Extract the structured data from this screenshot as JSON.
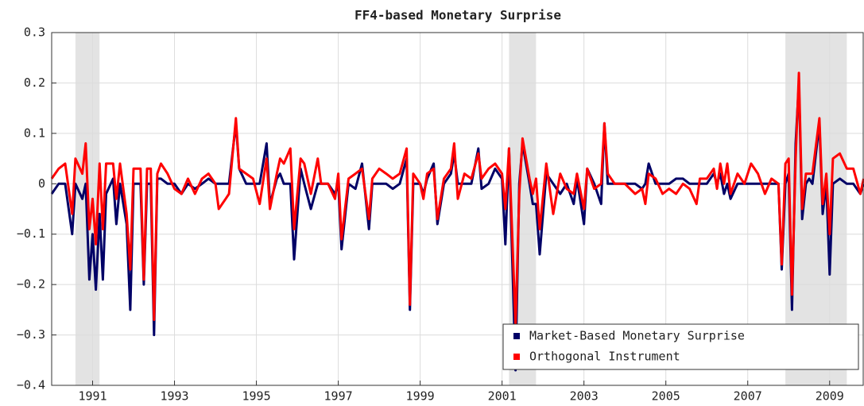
{
  "chart_data": {
    "type": "line",
    "title": "FF4-based Monetary Surprise",
    "x": [
      1990.0,
      1990.17,
      1990.33,
      1990.5,
      1990.58,
      1990.75,
      1990.83,
      1990.92,
      1991.0,
      1991.08,
      1991.17,
      1991.25,
      1991.33,
      1991.5,
      1991.58,
      1991.67,
      1991.83,
      1991.92,
      1992.0,
      1992.17,
      1992.25,
      1992.33,
      1992.42,
      1992.5,
      1992.58,
      1992.67,
      1992.83,
      1993.0,
      1993.17,
      1993.33,
      1993.5,
      1993.67,
      1993.83,
      1994.0,
      1994.08,
      1994.25,
      1994.33,
      1994.5,
      1994.58,
      1994.75,
      1994.92,
      1995.08,
      1995.25,
      1995.33,
      1995.5,
      1995.58,
      1995.67,
      1995.83,
      1995.92,
      1996.08,
      1996.17,
      1996.33,
      1996.5,
      1996.58,
      1996.75,
      1996.92,
      1997.0,
      1997.08,
      1997.25,
      1997.42,
      1997.58,
      1997.75,
      1997.83,
      1998.0,
      1998.17,
      1998.33,
      1998.5,
      1998.67,
      1998.75,
      1998.83,
      1999.0,
      1999.08,
      1999.17,
      1999.33,
      1999.42,
      1999.58,
      1999.75,
      1999.83,
      1999.92,
      2000.08,
      2000.25,
      2000.42,
      2000.5,
      2000.67,
      2000.83,
      2001.0,
      2001.08,
      2001.17,
      2001.33,
      2001.42,
      2001.5,
      2001.67,
      2001.75,
      2001.83,
      2001.92,
      2002.08,
      2002.25,
      2002.42,
      2002.58,
      2002.75,
      2002.83,
      2003.0,
      2003.08,
      2003.25,
      2003.42,
      2003.5,
      2003.58,
      2003.75,
      2004.0,
      2004.25,
      2004.42,
      2004.5,
      2004.58,
      2004.75,
      2004.92,
      2005.08,
      2005.25,
      2005.42,
      2005.58,
      2005.75,
      2005.83,
      2006.0,
      2006.17,
      2006.25,
      2006.33,
      2006.42,
      2006.5,
      2006.58,
      2006.75,
      2006.92,
      2007.08,
      2007.25,
      2007.42,
      2007.58,
      2007.75,
      2007.83,
      2007.92,
      2008.0,
      2008.08,
      2008.17,
      2008.25,
      2008.33,
      2008.42,
      2008.5,
      2008.58,
      2008.75,
      2008.83,
      2008.92,
      2009.0,
      2009.08,
      2009.25,
      2009.42,
      2009.58,
      2009.75,
      2009.83
    ],
    "series": [
      {
        "name": "Market-Based Monetary Surprise",
        "color": "#000066",
        "values": [
          -0.02,
          0,
          0,
          -0.1,
          0,
          -0.03,
          0,
          -0.19,
          -0.1,
          -0.21,
          -0.06,
          -0.19,
          -0.02,
          0.01,
          -0.08,
          0,
          -0.08,
          -0.25,
          0,
          0,
          -0.2,
          0,
          0,
          -0.3,
          0.01,
          0.01,
          0,
          0,
          -0.02,
          0,
          -0.01,
          0,
          0.01,
          0,
          0,
          0,
          0,
          0.12,
          0.03,
          0,
          0,
          0,
          0.08,
          -0.04,
          0.01,
          0.02,
          0,
          0,
          -0.15,
          0.03,
          0,
          -0.05,
          0,
          0,
          0,
          -0.02,
          0,
          -0.13,
          0,
          -0.01,
          0.04,
          -0.09,
          0,
          0,
          0,
          -0.01,
          0,
          0.05,
          -0.25,
          0,
          0,
          -0.02,
          0.01,
          0.04,
          -0.08,
          0,
          0.02,
          0.06,
          0,
          0,
          0,
          0.07,
          -0.01,
          0,
          0.03,
          0.01,
          -0.12,
          0.07,
          -0.37,
          0,
          0.08,
          0,
          -0.04,
          -0.04,
          -0.14,
          0.02,
          0,
          -0.02,
          0,
          -0.04,
          0.01,
          -0.08,
          0.03,
          0,
          -0.04,
          0.12,
          0,
          0,
          0,
          0,
          -0.01,
          0,
          0.04,
          0,
          0,
          0,
          0.01,
          0.01,
          0,
          0,
          0,
          0,
          0.02,
          0,
          0.02,
          -0.02,
          0,
          -0.03,
          0,
          0,
          0,
          0,
          0,
          0,
          0,
          -0.17,
          0,
          0.02,
          -0.25,
          0.08,
          0.2,
          -0.07,
          0,
          0.01,
          0,
          0.12,
          -0.06,
          0,
          -0.18,
          0,
          0.01,
          0,
          0,
          -0.02,
          0
        ]
      },
      {
        "name": "Orthogonal Instrument",
        "color": "#ff0000",
        "values": [
          0.01,
          0.03,
          0.04,
          -0.06,
          0.05,
          0.02,
          0.08,
          -0.09,
          -0.03,
          -0.12,
          0.04,
          -0.09,
          0.04,
          0.04,
          -0.03,
          0.04,
          -0.06,
          -0.17,
          0.03,
          0.03,
          -0.19,
          0.03,
          0.03,
          -0.27,
          0.02,
          0.04,
          0.02,
          -0.01,
          -0.02,
          0.01,
          -0.02,
          0.01,
          0.02,
          0,
          -0.05,
          -0.03,
          -0.02,
          0.13,
          0.03,
          0.02,
          0.01,
          -0.04,
          0.05,
          -0.05,
          0.02,
          0.05,
          0.04,
          0.07,
          -0.09,
          0.05,
          0.04,
          -0.02,
          0.05,
          0,
          0,
          -0.03,
          0.02,
          -0.11,
          0.01,
          0.02,
          0.03,
          -0.07,
          0.01,
          0.03,
          0.02,
          0.01,
          0.02,
          0.07,
          -0.24,
          0.02,
          0,
          -0.03,
          0.02,
          0.03,
          -0.07,
          0.01,
          0.03,
          0.08,
          -0.03,
          0.02,
          0.01,
          0.06,
          0.01,
          0.03,
          0.04,
          0.02,
          -0.05,
          0.07,
          -0.28,
          -0.02,
          0.09,
          0.01,
          -0.02,
          0.01,
          -0.09,
          0.04,
          -0.06,
          0.02,
          -0.01,
          -0.02,
          0.02,
          -0.05,
          0.03,
          -0.01,
          0,
          0.12,
          0.02,
          0,
          0,
          -0.02,
          -0.01,
          -0.04,
          0.02,
          0.01,
          -0.02,
          -0.01,
          -0.02,
          0,
          -0.01,
          -0.04,
          0.01,
          0.01,
          0.03,
          -0.01,
          0.04,
          0,
          0.04,
          -0.02,
          0.02,
          0,
          0.04,
          0.02,
          -0.02,
          0.01,
          0,
          -0.16,
          0.04,
          0.05,
          -0.22,
          0.05,
          0.22,
          -0.05,
          0.02,
          0.02,
          0.02,
          0.13,
          -0.04,
          0.02,
          -0.1,
          0.05,
          0.06,
          0.03,
          0.03,
          -0.02,
          0.01
        ]
      }
    ],
    "shaded_regions": [
      [
        1990.58,
        1991.17
      ],
      [
        2001.17,
        2001.83
      ],
      [
        2007.92,
        2009.42
      ]
    ],
    "xlim": [
      1990,
      2009.82
    ],
    "xticks": [
      1991,
      1993,
      1995,
      1997,
      1999,
      2001,
      2003,
      2005,
      2007,
      2009
    ],
    "ylim": [
      -0.4,
      0.3
    ],
    "yticks": [
      {
        "value": -0.4,
        "label": "−0.4"
      },
      {
        "value": -0.3,
        "label": "−0.3"
      },
      {
        "value": -0.2,
        "label": "−0.2"
      },
      {
        "value": -0.1,
        "label": "−0.1"
      },
      0,
      0.1,
      0.2,
      0.3
    ],
    "grid": true,
    "legend": "lower right"
  }
}
